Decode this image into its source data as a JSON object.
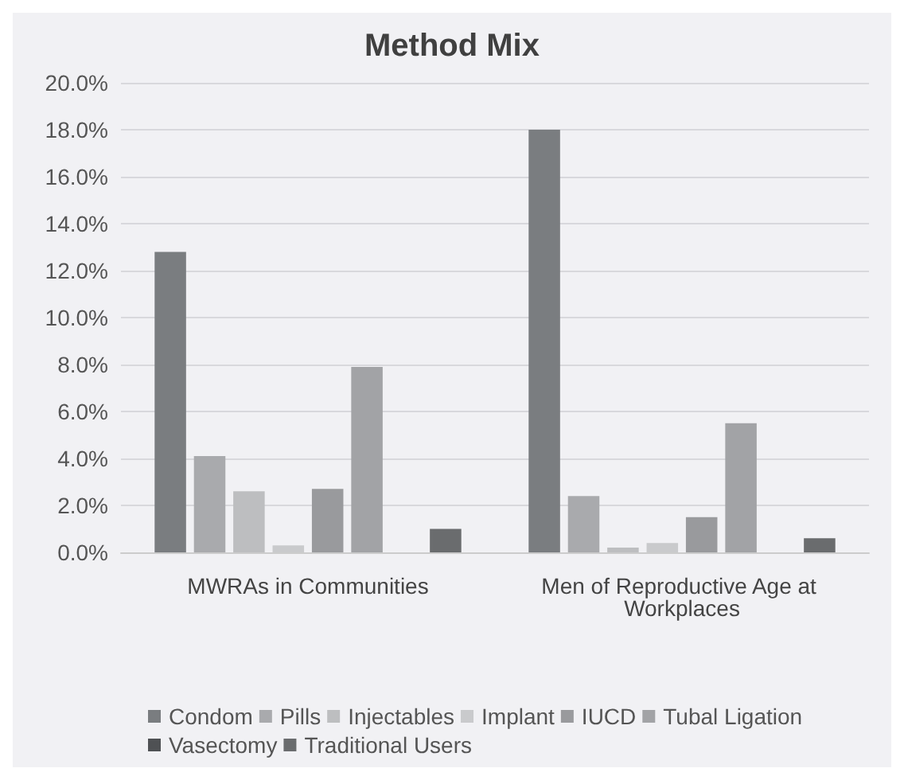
{
  "chart_data": {
    "type": "bar",
    "title": "Method Mix",
    "categories": [
      "MWRAs in Communities",
      "Men of Reproductive Age at Workplaces"
    ],
    "series": [
      {
        "name": "Condom",
        "color": "#7a7d80",
        "values": [
          12.8,
          18.0
        ]
      },
      {
        "name": "Pills",
        "color": "#a9aaad",
        "values": [
          4.1,
          2.4
        ]
      },
      {
        "name": "Injectables",
        "color": "#bdbec0",
        "values": [
          2.6,
          0.2
        ]
      },
      {
        "name": "Implant",
        "color": "#c9cacc",
        "values": [
          0.3,
          0.4
        ]
      },
      {
        "name": "IUCD",
        "color": "#999a9d",
        "values": [
          2.7,
          1.5
        ]
      },
      {
        "name": "Tubal Ligation",
        "color": "#a2a3a6",
        "values": [
          7.9,
          5.5
        ]
      },
      {
        "name": "Vasectomy",
        "color": "#4f5154",
        "values": [
          0,
          0
        ]
      },
      {
        "name": "Traditional Users",
        "color": "#6a6c6e",
        "values": [
          1.0,
          0.6
        ]
      }
    ],
    "ylim": [
      0,
      20
    ],
    "yticks": [
      {
        "value": 0,
        "label": "0.0%"
      },
      {
        "value": 2,
        "label": "2.0%"
      },
      {
        "value": 4,
        "label": "4.0%"
      },
      {
        "value": 6,
        "label": "6.0%"
      },
      {
        "value": 8,
        "label": "8.0%"
      },
      {
        "value": 10,
        "label": "10.0%"
      },
      {
        "value": 12,
        "label": "12.0%"
      },
      {
        "value": 14,
        "label": "14.0%"
      },
      {
        "value": 16,
        "label": "16.0%"
      },
      {
        "value": 18,
        "label": "18.0%"
      },
      {
        "value": 20,
        "label": "20.0%"
      }
    ],
    "grid": "y",
    "legend": "bottom"
  }
}
